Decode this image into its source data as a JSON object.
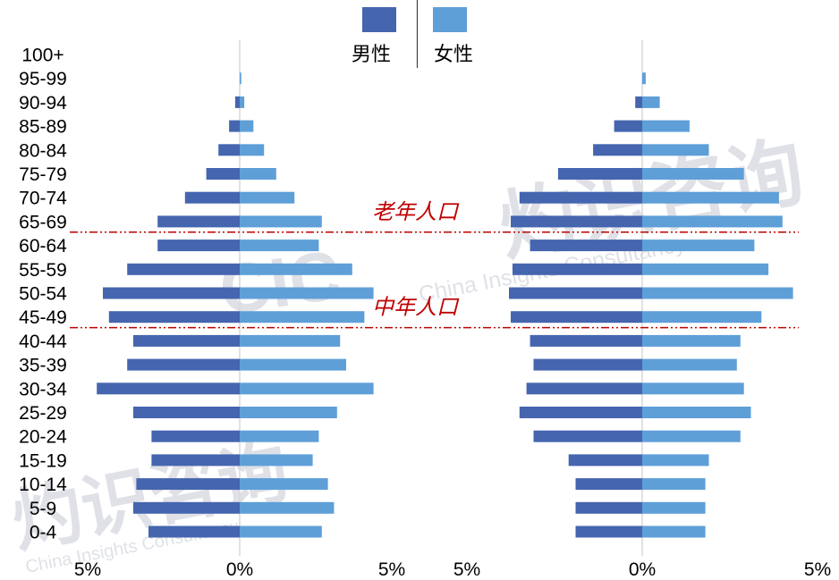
{
  "legend": {
    "position": "top"
  },
  "colors": {
    "male": "#4565AF",
    "female": "#5E9FD8",
    "zero_axis": "#D9D9D9",
    "annotation": "#C00000",
    "legend_divider": "#404040",
    "watermark": "#C5CAD4"
  },
  "annotations": [
    {
      "label": "老年人口",
      "line_below_age_group": "65-69"
    },
    {
      "label": "中年人口",
      "line_below_age_group": "45-49"
    }
  ],
  "watermark": {
    "cn": "灼识咨询",
    "en": "China Insights Consultancy",
    "logo": "CIC"
  },
  "chart_data": [
    {
      "type": "bar",
      "orientation": "horizontal",
      "categories": [
        "100+",
        "95-99",
        "90-94",
        "85-89",
        "80-84",
        "75-79",
        "70-74",
        "65-69",
        "60-64",
        "55-59",
        "50-54",
        "45-49",
        "40-44",
        "35-39",
        "30-34",
        "25-29",
        "20-24",
        "15-19",
        "10-14",
        "5-9",
        "0-4"
      ],
      "series": [
        {
          "name": "男性",
          "values": [
            0,
            0,
            0.15,
            0.35,
            0.7,
            1.1,
            1.8,
            2.7,
            2.7,
            3.7,
            4.5,
            4.3,
            3.5,
            3.7,
            4.7,
            3.5,
            2.9,
            2.9,
            3.4,
            3.5,
            3.0
          ]
        },
        {
          "name": "女性",
          "values": [
            0,
            0.05,
            0.15,
            0.45,
            0.8,
            1.2,
            1.8,
            2.7,
            2.6,
            3.7,
            4.4,
            4.1,
            3.3,
            3.5,
            4.4,
            3.2,
            2.6,
            2.4,
            2.9,
            3.1,
            2.7
          ]
        }
      ],
      "xlim": [
        -5,
        5
      ],
      "x_ticks": [
        -5,
        0,
        5
      ],
      "x_tick_labels": [
        "5%",
        "0%",
        "5%"
      ],
      "grid": false
    },
    {
      "type": "bar",
      "orientation": "horizontal",
      "categories": [
        "100+",
        "95-99",
        "90-94",
        "85-89",
        "80-84",
        "75-79",
        "70-74",
        "65-69",
        "60-64",
        "55-59",
        "50-54",
        "45-49",
        "40-44",
        "35-39",
        "30-34",
        "25-29",
        "20-24",
        "15-19",
        "10-14",
        "5-9",
        "0-4"
      ],
      "series": [
        {
          "name": "男性",
          "values": [
            0,
            0,
            0.2,
            0.8,
            1.4,
            2.4,
            3.5,
            3.75,
            3.2,
            3.7,
            3.8,
            3.75,
            3.2,
            3.1,
            3.3,
            3.5,
            3.1,
            2.1,
            1.9,
            1.9,
            1.9
          ]
        },
        {
          "name": "女性",
          "values": [
            0,
            0.1,
            0.5,
            1.35,
            1.9,
            2.9,
            3.9,
            4.0,
            3.2,
            3.6,
            4.3,
            3.4,
            2.8,
            2.7,
            2.9,
            3.1,
            2.8,
            1.9,
            1.8,
            1.8,
            1.8
          ]
        }
      ],
      "xlim": [
        -5,
        5
      ],
      "x_ticks": [
        -5,
        0,
        5
      ],
      "x_tick_labels": [
        "5%",
        "0%",
        "5%"
      ],
      "grid": false
    }
  ]
}
